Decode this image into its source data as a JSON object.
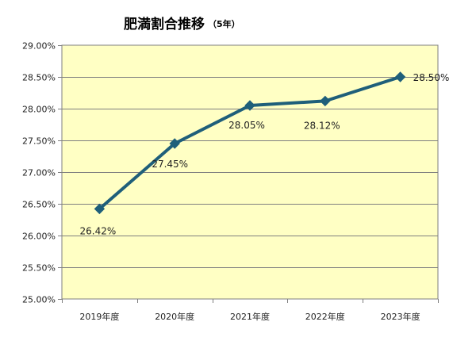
{
  "chart_data": {
    "type": "line",
    "title": "肥満割合推移",
    "subtitle": "（5年）",
    "categories": [
      "2019年度",
      "2020年度",
      "2021年度",
      "2022年度",
      "2023年度"
    ],
    "series": [
      {
        "values": [
          26.42,
          27.45,
          28.05,
          28.12,
          28.5
        ],
        "labels": [
          "26.42%",
          "27.45%",
          "28.05%",
          "28.12%",
          "28.50%"
        ],
        "color": "#1f5f7a"
      }
    ],
    "y_ticks": [
      "25.00%",
      "25.50%",
      "26.00%",
      "26.50%",
      "27.00%",
      "27.50%",
      "28.00%",
      "28.50%",
      "29.00%"
    ],
    "ylim": [
      25.0,
      29.0
    ],
    "grid": true,
    "legend": "none",
    "plot_background": "#ffffc4",
    "grid_color": "#7f7f7f",
    "marker": "diamond"
  }
}
